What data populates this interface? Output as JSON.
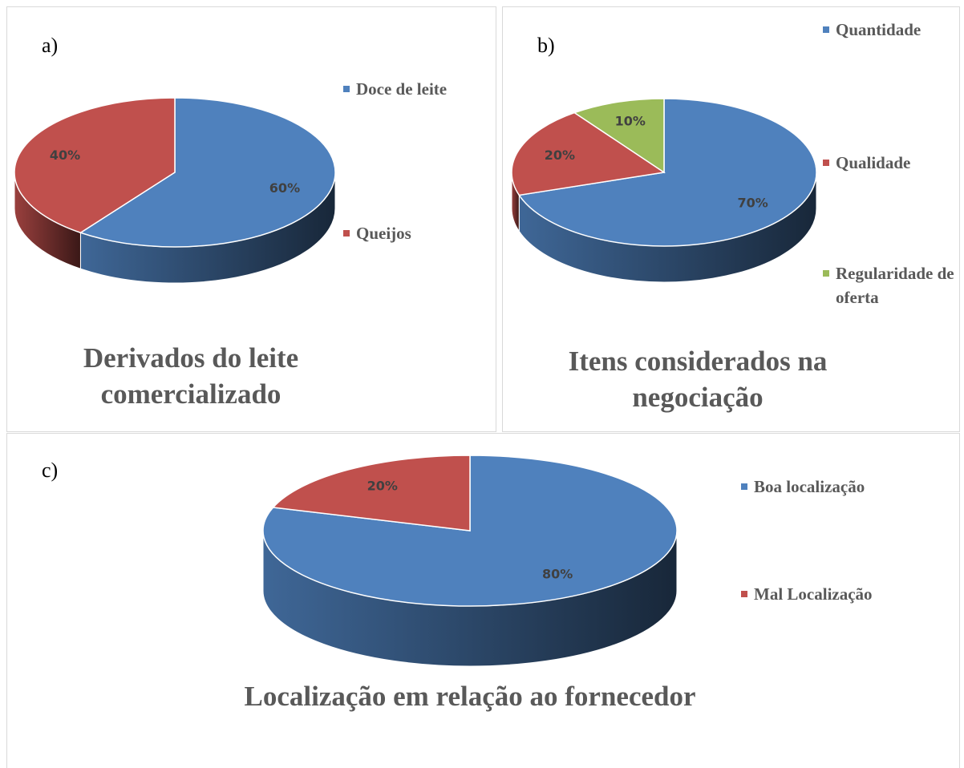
{
  "chart_data": [
    {
      "type": "pie",
      "panel_label": "a)",
      "title": "Derivados do leite comercializado",
      "categories": [
        "Doce de leite",
        "Queijos"
      ],
      "values": [
        60,
        40
      ],
      "value_labels": [
        "60%",
        "40%"
      ],
      "colors": [
        "#4f81bd",
        "#c0504d"
      ]
    },
    {
      "type": "pie",
      "panel_label": "b)",
      "title": "Itens considerados na negociação",
      "categories": [
        "Quantidade",
        "Qualidade",
        "Regularidade de oferta"
      ],
      "values": [
        70,
        20,
        10
      ],
      "value_labels": [
        "70%",
        "20%",
        "10%"
      ],
      "colors": [
        "#4f81bd",
        "#c0504d",
        "#9bbb59"
      ]
    },
    {
      "type": "pie",
      "panel_label": "c)",
      "title": "Localização em relação ao fornecedor",
      "categories": [
        "Boa localização",
        "Mal Localização"
      ],
      "values": [
        80,
        20
      ],
      "value_labels": [
        "80%",
        "20%"
      ],
      "colors": [
        "#4f81bd",
        "#c0504d"
      ]
    }
  ]
}
